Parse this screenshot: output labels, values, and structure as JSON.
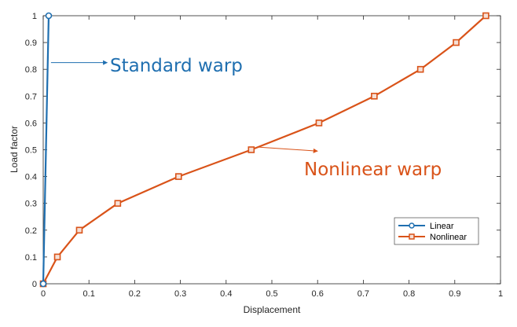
{
  "chart_data": {
    "type": "line",
    "xlabel": "Displacement",
    "ylabel": "Load factor",
    "xlim": [
      0,
      1
    ],
    "ylim": [
      0,
      1
    ],
    "x_ticks": [
      "0",
      "0.1",
      "0.2",
      "0.3",
      "0.4",
      "0.5",
      "0.6",
      "0.7",
      "0.8",
      "0.9",
      "1"
    ],
    "y_ticks": [
      "0",
      "0.1",
      "0.2",
      "0.3",
      "0.4",
      "0.5",
      "0.6",
      "0.7",
      "0.8",
      "0.9",
      "1"
    ],
    "grid": false,
    "legend_position": "bottom-right",
    "series": [
      {
        "name": "Linear",
        "color": "#1f6fb0",
        "marker": "circle",
        "points": [
          [
            0,
            0
          ],
          [
            0.012,
            1
          ]
        ]
      },
      {
        "name": "Nonlinear",
        "color": "#d95319",
        "marker": "square",
        "points": [
          [
            0,
            0
          ],
          [
            0.031,
            0.1
          ],
          [
            0.079,
            0.2
          ],
          [
            0.163,
            0.3
          ],
          [
            0.296,
            0.4
          ],
          [
            0.455,
            0.5
          ],
          [
            0.603,
            0.6
          ],
          [
            0.724,
            0.7
          ],
          [
            0.825,
            0.8
          ],
          [
            0.903,
            0.9
          ],
          [
            0.968,
            1
          ]
        ]
      }
    ],
    "annotations": [
      {
        "text": "Standard warp",
        "color": "#1f6fb0",
        "arrow_from": [
          0.017,
          0.825
        ],
        "arrow_to": [
          0.14,
          0.825
        ]
      },
      {
        "text": "Nonlinear warp",
        "color": "#d95319",
        "arrow_from": [
          0.47,
          0.51
        ],
        "arrow_to": [
          0.6,
          0.495
        ]
      }
    ]
  }
}
